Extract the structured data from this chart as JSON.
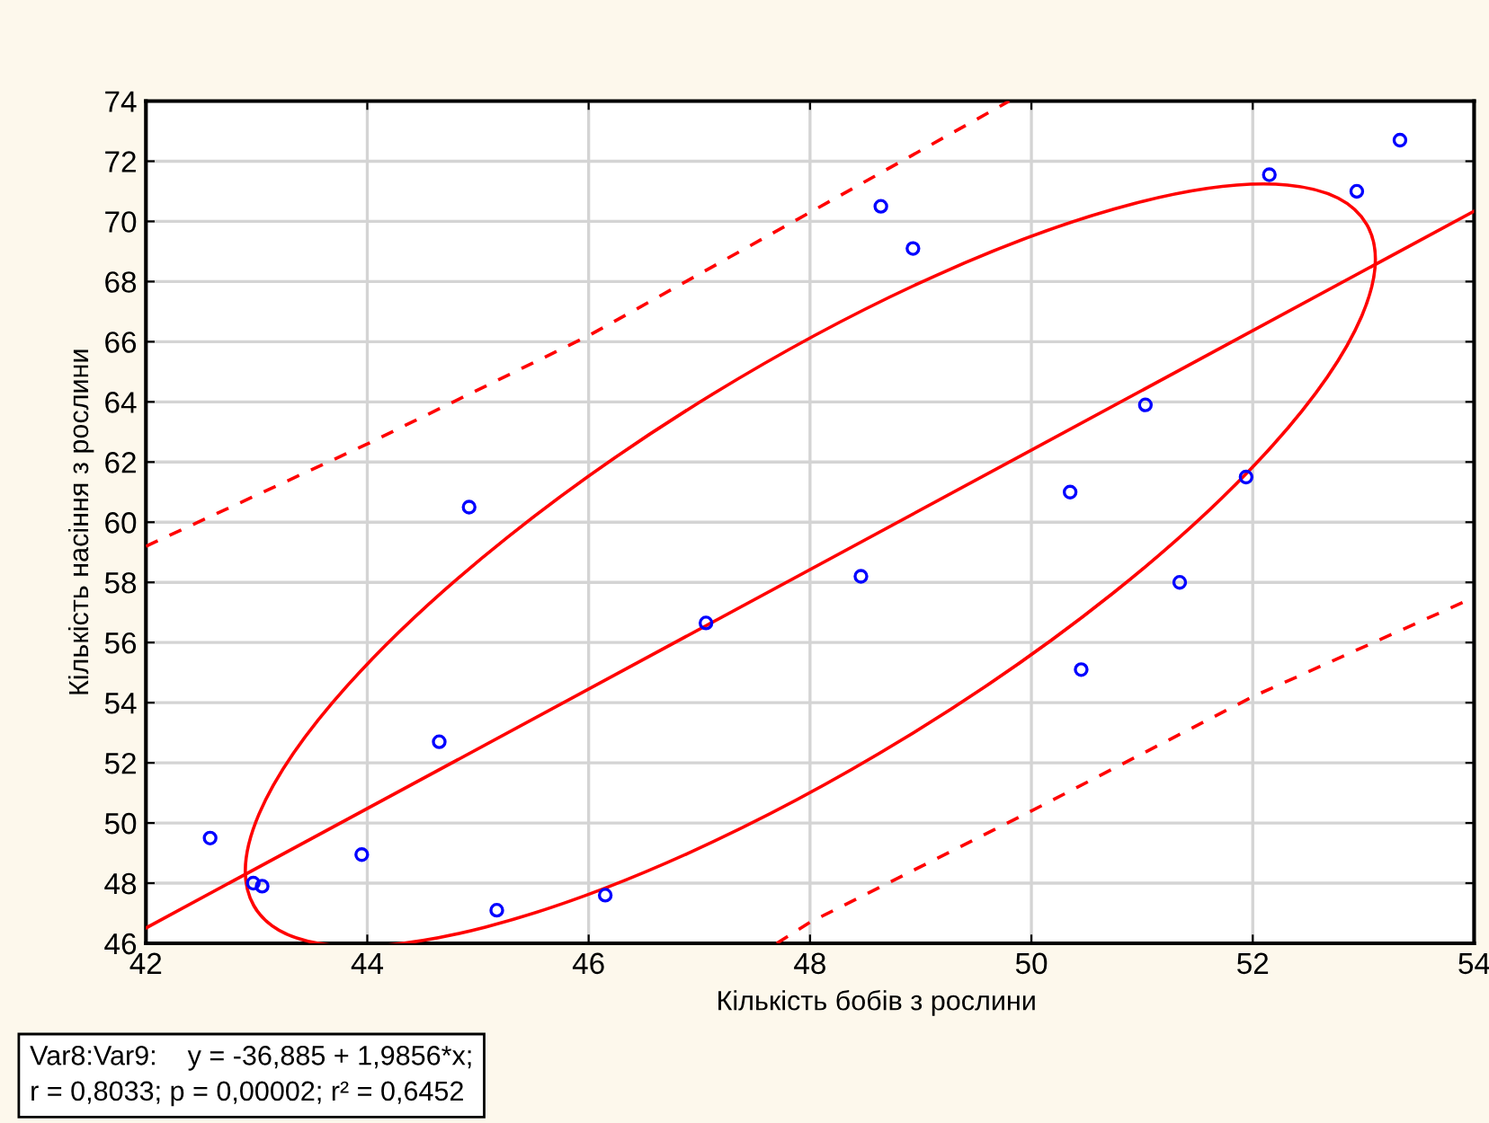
{
  "chart_data": {
    "type": "scatter",
    "xlabel": "Кількість бобів з рослини",
    "ylabel": "Кількість насіння з рослини",
    "annotations": [
      "Var8:Var9:    y = -36,885 + 1,9856*x;\nr = 0,8033; p = 0,00002; r² = 0,6452"
    ],
    "series": [
      {
        "type": "scatter",
        "color": "#0000ff",
        "marker": "circle",
        "x": [
          42.58,
          42.97,
          43.05,
          43.95,
          44.65,
          44.92,
          45.17,
          46.15,
          47.06,
          48.46,
          48.64,
          48.93,
          50.35,
          50.45,
          51.03,
          51.34,
          51.94,
          52.15,
          52.94,
          53.33
        ],
        "values": [
          49.5,
          48.0,
          47.9,
          48.95,
          52.7,
          60.5,
          47.1,
          47.6,
          56.65,
          58.2,
          70.5,
          69.1,
          61.0,
          55.1,
          63.9,
          58.0,
          61.5,
          71.55,
          71.0,
          72.7
        ]
      },
      {
        "type": "line",
        "color": "#ff0000",
        "line_style": "solid",
        "marker": "none",
        "x": [
          42,
          54
        ],
        "values": [
          46.51,
          70.34
        ]
      },
      {
        "type": "line",
        "color": "#ff0000",
        "line_style": "dashed",
        "marker": "none",
        "x": [
          42,
          44,
          46,
          48,
          49.8
        ],
        "values": [
          59.2,
          62.6,
          66.2,
          70.3,
          74
        ]
      },
      {
        "type": "line",
        "color": "#ff0000",
        "line_style": "dashed",
        "marker": "none",
        "x": [
          47.7,
          48,
          50,
          52,
          54
        ],
        "values": [
          46,
          46.7,
          50.4,
          54.2,
          57.5
        ]
      }
    ],
    "xlim": [
      42,
      54
    ],
    "xticks": [
      42,
      44,
      46,
      48,
      50,
      52,
      54
    ],
    "ylim": [
      46,
      74
    ],
    "yticks": [
      46,
      48,
      50,
      52,
      54,
      56,
      58,
      60,
      62,
      64,
      66,
      68,
      70,
      72,
      74
    ],
    "grid": true,
    "legend": false
  }
}
